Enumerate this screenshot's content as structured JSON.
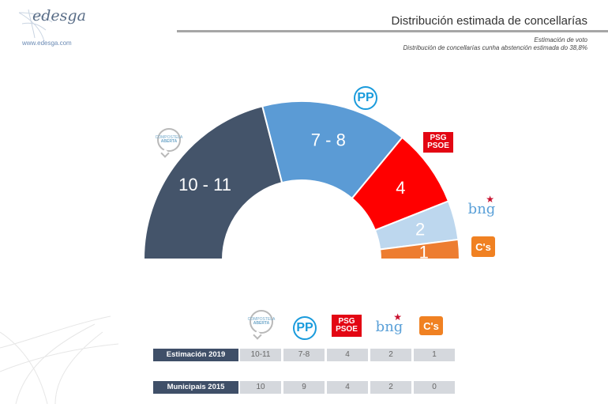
{
  "header": {
    "logo_word": "edesga",
    "logo_url": "www.edesga.com",
    "title": "Distribución estimada de concellarías",
    "subtitle_1": "Estimación de voto",
    "subtitle_2": "Distribución de concellarías cunha abstención estimada do 38,8%"
  },
  "chart_data": {
    "type": "pie",
    "variant": "half-donut",
    "title": "",
    "slices": [
      {
        "party": "Compostela Aberta",
        "label": "10 - 11",
        "value": 10.5,
        "color": "#44546a"
      },
      {
        "party": "PP",
        "label": "7 - 8",
        "value": 7.5,
        "color": "#5b9bd5"
      },
      {
        "party": "PSdeG-PSOE",
        "label": "4",
        "value": 4,
        "color": "#ff0000"
      },
      {
        "party": "BNG",
        "label": "2",
        "value": 2,
        "color": "#bdd7ee"
      },
      {
        "party": "Cs",
        "label": "1",
        "value": 1,
        "color": "#ed7d31"
      }
    ]
  },
  "badges": {
    "ca_text": [
      "COMPOSTELA",
      "ABERTA"
    ],
    "pp": "PP",
    "psoe_line1": "PSG",
    "psoe_line2": "PSOE",
    "bng": "bng",
    "cs": "C's"
  },
  "table": {
    "rows": [
      {
        "label": "Estimación 2019",
        "values": [
          "10-11",
          "7-8",
          "4",
          "2",
          "1"
        ]
      },
      {
        "label": "Municipais 2015",
        "values": [
          "10",
          "9",
          "4",
          "2",
          "0"
        ]
      }
    ]
  }
}
